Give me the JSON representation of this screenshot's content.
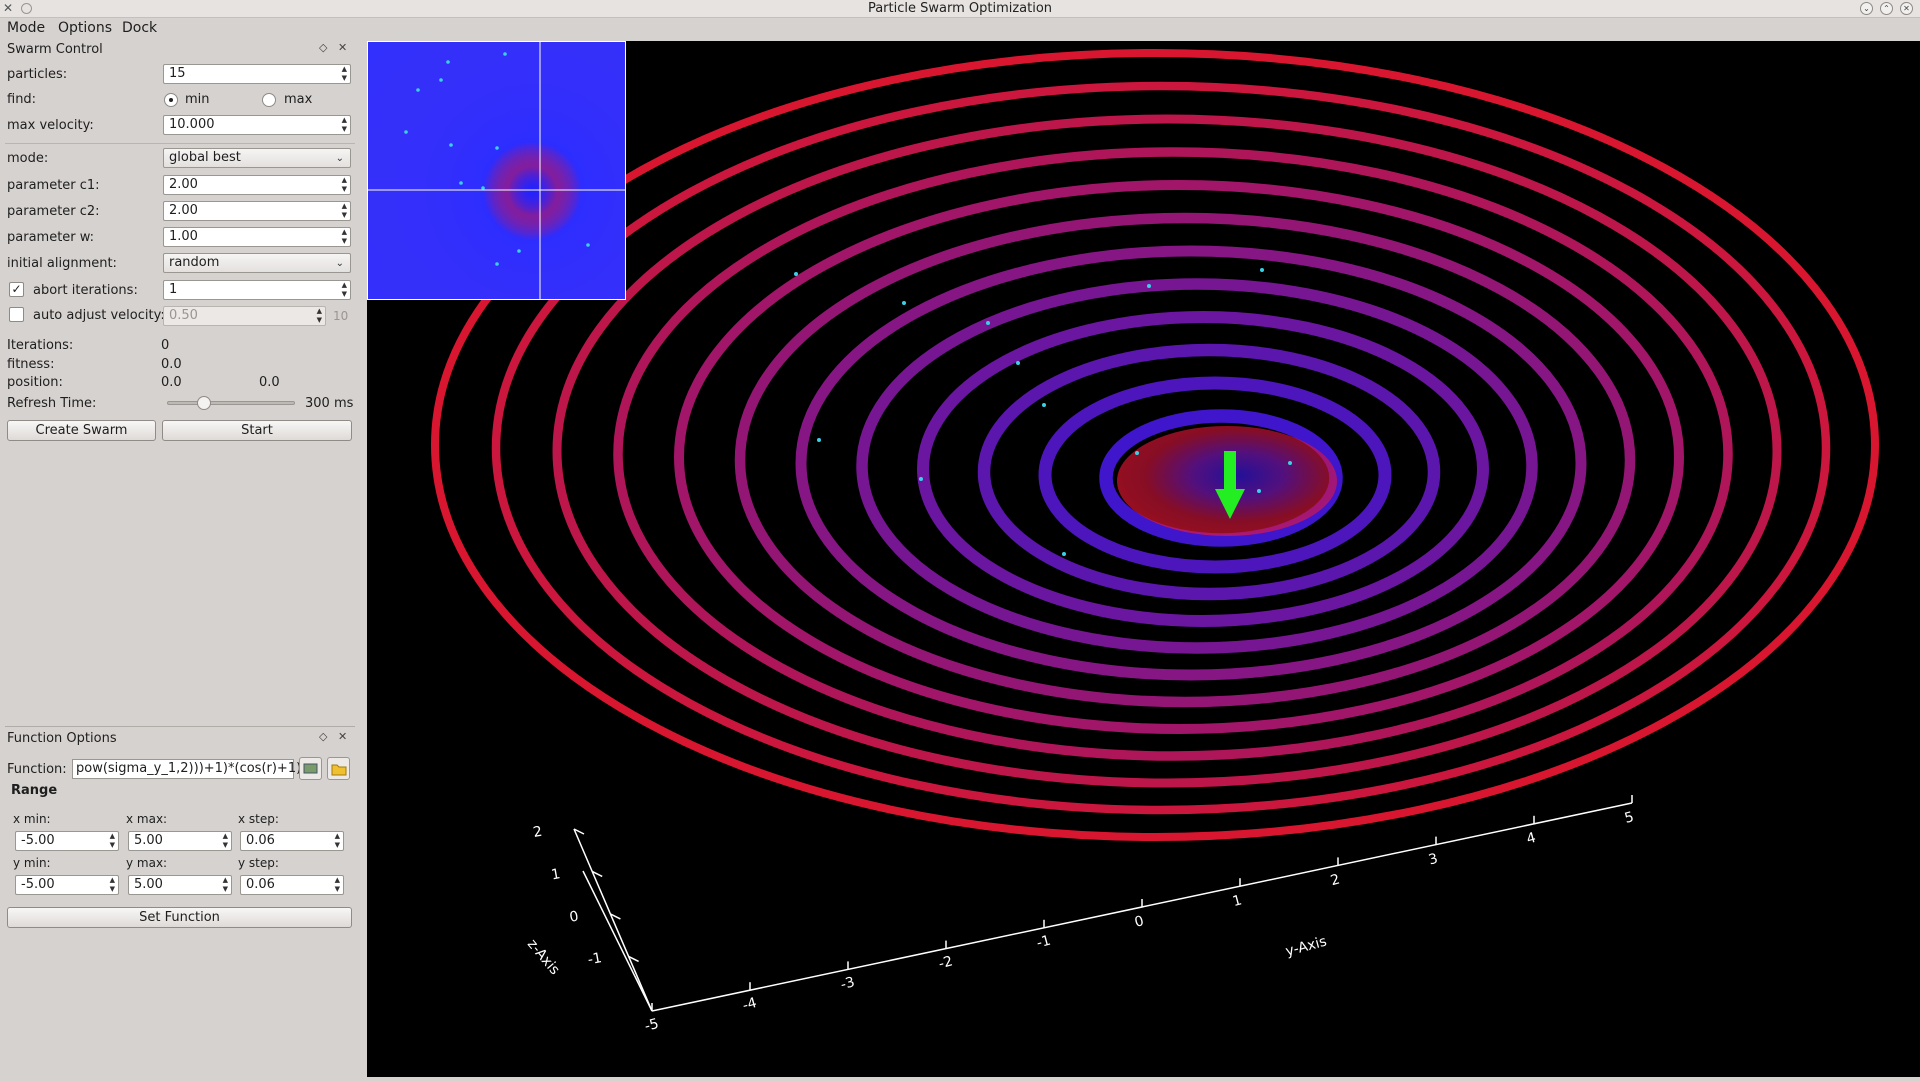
{
  "window": {
    "title": "Particle Swarm Optimization"
  },
  "menu": [
    "Mode",
    "Options",
    "Dock"
  ],
  "swarm": {
    "title": "Swarm Control",
    "particles_label": "particles:",
    "particles_value": "15",
    "find_label": "find:",
    "find_min": "min",
    "find_max": "max",
    "max_velocity_label": "max velocity:",
    "max_velocity_value": "10.000",
    "mode_label": "mode:",
    "mode_value": "global best",
    "c1_label": "parameter c1:",
    "c1_value": "2.00",
    "c2_label": "parameter c2:",
    "c2_value": "2.00",
    "w_label": "parameter w:",
    "w_value": "1.00",
    "alignment_label": "initial alignment:",
    "alignment_value": "random",
    "abort_label": "abort iterations:",
    "abort_value": "1",
    "auto_label": "auto adjust velocity:",
    "auto_value": "0.50",
    "auto_suffix": "10",
    "iterations_label": "Iterations:",
    "iterations_value": "0",
    "fitness_label": "fitness:",
    "fitness_value": "0.0",
    "position_label": "position:",
    "position_x": "0.0",
    "position_y": "0.0",
    "refresh_label": "Refresh Time:",
    "refresh_value": "300 ms",
    "refresh_fraction": 0.3,
    "create_button": "Create Swarm",
    "start_button": "Start"
  },
  "function": {
    "title": "Function Options",
    "function_label": "Function:",
    "function_value": "pow(sigma_y_1,2)))+1)*(cos(r)+1)",
    "range_label": "Range",
    "xmin_label": "x min:",
    "xmin_value": "-5.00",
    "xmax_label": "x max:",
    "xmax_value": "5.00",
    "xstep_label": "x step:",
    "xstep_value": "0.06",
    "ymin_label": "y min:",
    "ymin_value": "-5.00",
    "ymax_label": "y max:",
    "ymax_value": "5.00",
    "ystep_label": "y step:",
    "ystep_value": "0.06",
    "set_button": "Set Function"
  },
  "plot": {
    "z_axis_label": "z-Axis",
    "y_axis_label": "y-Axis",
    "z_ticks": [
      "2",
      "1",
      "0",
      "-1"
    ],
    "y_ticks": [
      "-5",
      "-4",
      "-3",
      "-2",
      "-1",
      "0",
      "1",
      "2",
      "3",
      "4",
      "5"
    ],
    "colors": {
      "high": "#ff1a33",
      "low": "#3a1aff",
      "marker": "#22ee22",
      "particle": "#3ad0e8"
    }
  },
  "minimap": {
    "name": "function-heatmap"
  }
}
